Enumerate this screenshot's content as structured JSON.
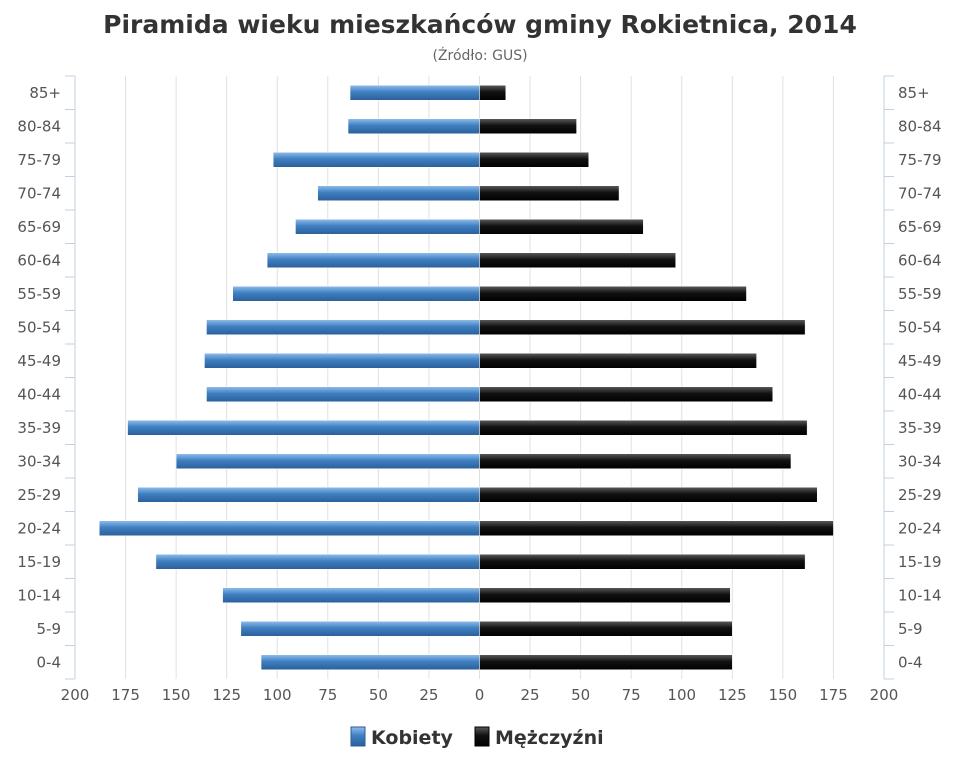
{
  "chart_data": {
    "type": "bar",
    "orientation": "horizontal-pyramid",
    "title": "Piramida wieku mieszkańców gminy Rokietnica, 2014",
    "subtitle": "(Źródło: GUS)",
    "categories": [
      "85+",
      "80-84",
      "75-79",
      "70-74",
      "65-69",
      "60-64",
      "55-59",
      "50-54",
      "45-49",
      "40-44",
      "35-39",
      "30-34",
      "25-29",
      "20-24",
      "15-19",
      "10-14",
      "5-9",
      "0-4"
    ],
    "xlim": [
      -200,
      200
    ],
    "x_ticks": [
      "200",
      "175",
      "150",
      "125",
      "100",
      "75",
      "50",
      "25",
      "0",
      "25",
      "50",
      "75",
      "100",
      "125",
      "150",
      "175",
      "200"
    ],
    "grid": true,
    "legend_position": "bottom",
    "series": [
      {
        "name": "Kobiety",
        "color": "#3f7fc1",
        "side": "left",
        "values": [
          64,
          65,
          102,
          80,
          91,
          105,
          122,
          135,
          136,
          135,
          174,
          150,
          169,
          188,
          160,
          127,
          118,
          108
        ]
      },
      {
        "name": "Mężczyźni",
        "color": "#1a1a1a",
        "side": "right",
        "values": [
          13,
          48,
          54,
          69,
          81,
          97,
          132,
          161,
          137,
          145,
          162,
          154,
          167,
          175,
          161,
          124,
          125,
          125
        ]
      }
    ]
  }
}
